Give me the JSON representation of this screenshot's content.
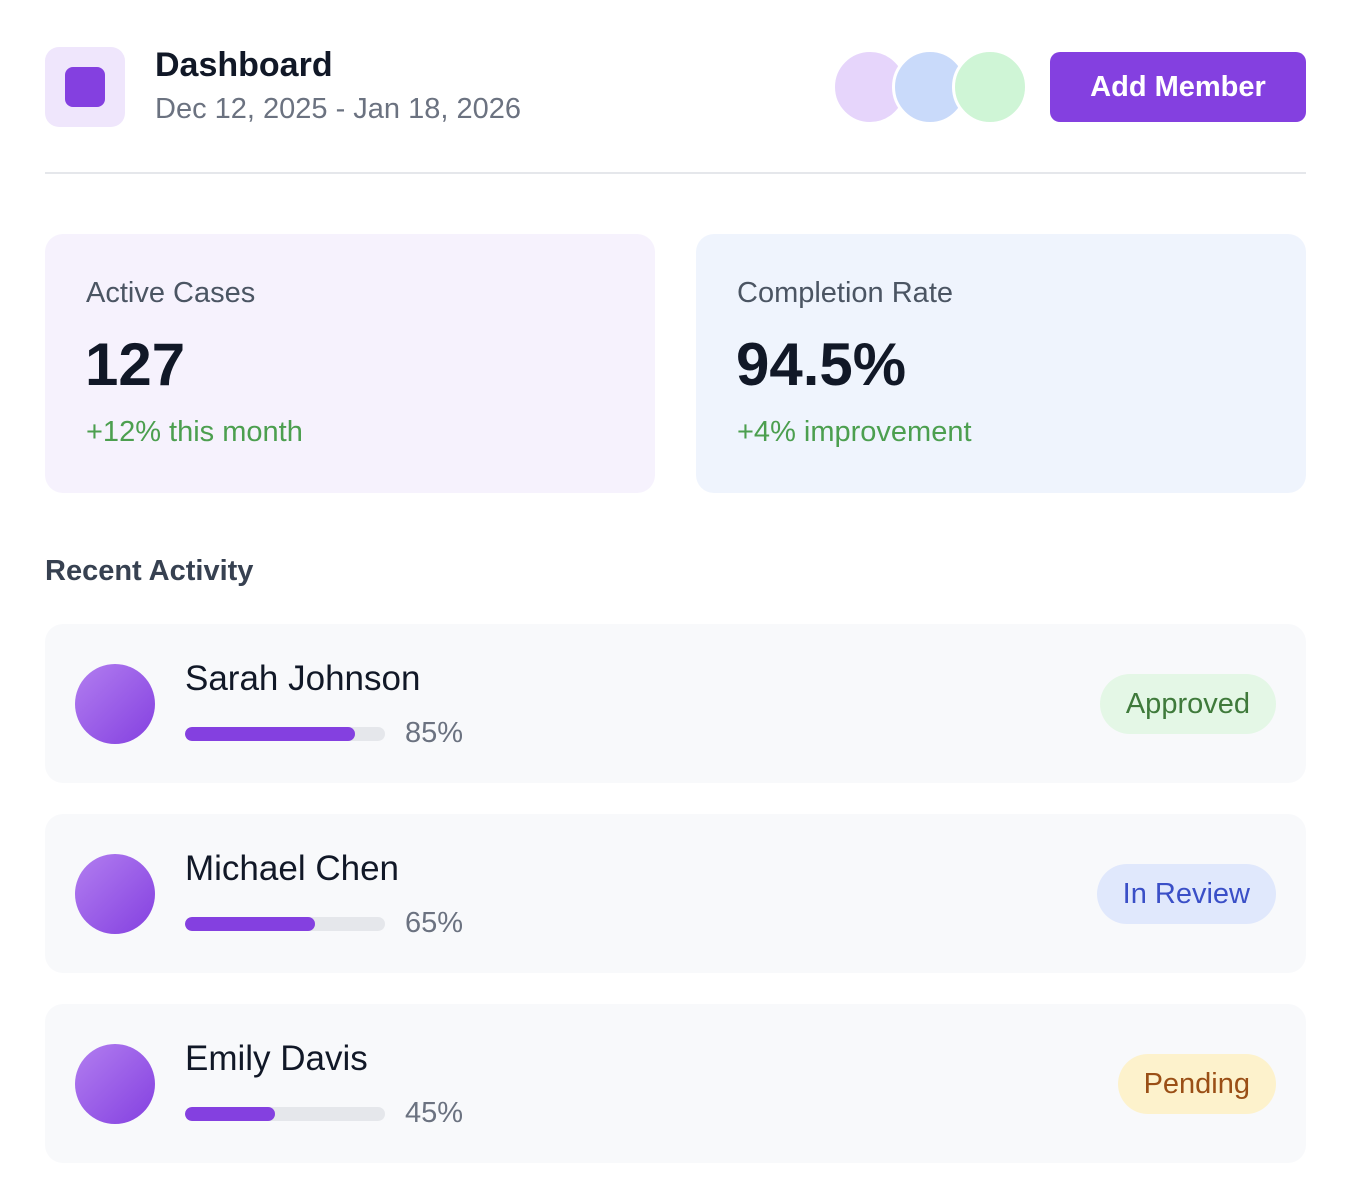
{
  "header": {
    "title": "Dashboard",
    "date_range": "Dec 12, 2025 - Jan 18, 2026",
    "button": "Add Member"
  },
  "stats": [
    {
      "label": "Active Cases",
      "value": "127",
      "change": "+12% this month"
    },
    {
      "label": "Completion Rate",
      "value": "94.5%",
      "change": "+4% improvement"
    }
  ],
  "activity": {
    "title": "Recent Activity",
    "rows": [
      {
        "name": "Sarah Johnson",
        "progress": 85,
        "progress_label": "85%",
        "status": "Approved"
      },
      {
        "name": "Michael Chen",
        "progress": 65,
        "progress_label": "65%",
        "status": "In Review"
      },
      {
        "name": "Emily Davis",
        "progress": 45,
        "progress_label": "45%",
        "status": "Pending"
      }
    ]
  }
}
